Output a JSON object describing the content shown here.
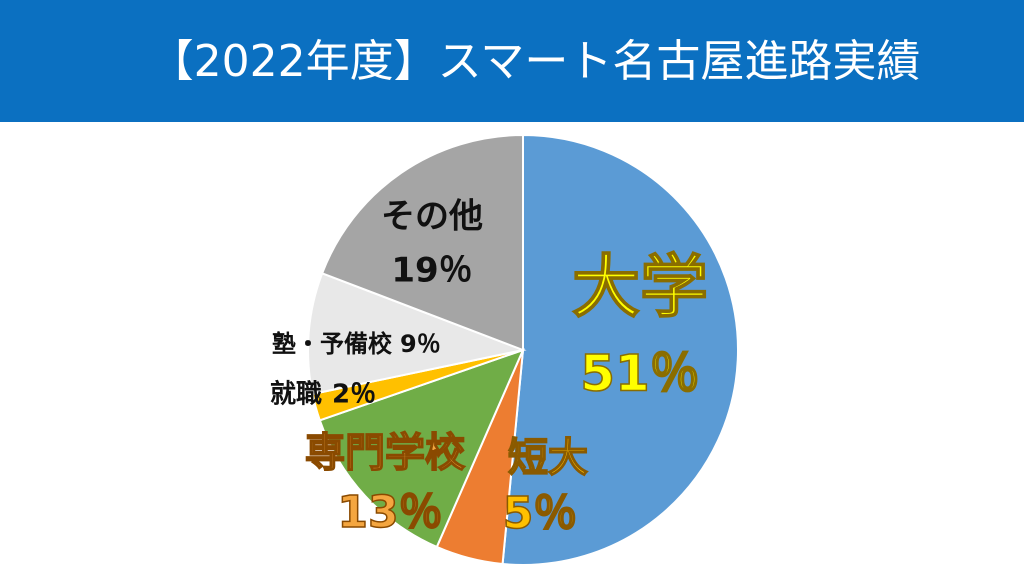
{
  "chart_data": {
    "type": "pie",
    "title": "【2022年度】スマート名古屋進路実績",
    "categories": [
      "大学",
      "短大",
      "専門学校",
      "就職",
      "塾・予備校",
      "その他"
    ],
    "values": [
      51,
      5,
      13,
      2,
      9,
      19
    ],
    "value_labels": [
      "51％",
      "5％",
      "13％",
      "2％",
      "9％",
      "19％"
    ],
    "colors": [
      "#5b9bd5",
      "#ed7d31",
      "#70ad47",
      "#ffc000",
      "#e8e8e8",
      "#a5a5a5"
    ]
  }
}
